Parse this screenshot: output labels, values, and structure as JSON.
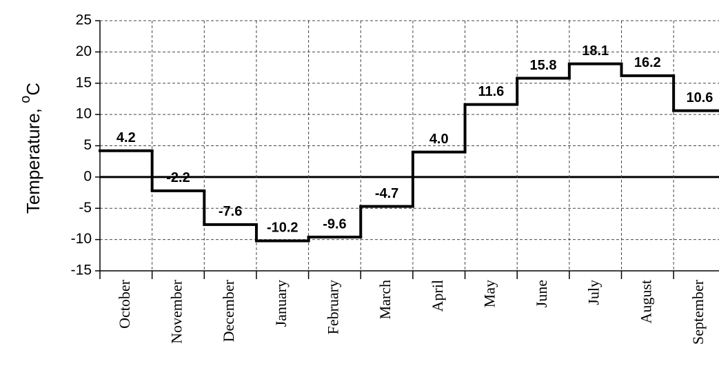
{
  "chart_data": {
    "type": "step",
    "ylabel": {
      "text": "Temperature, ",
      "sup": "o",
      "unit": "C"
    },
    "categories": [
      "October",
      "November",
      "December",
      "January",
      "February",
      "March",
      "April",
      "May",
      "June",
      "July",
      "August",
      "September"
    ],
    "values": [
      4.2,
      -2.2,
      -7.6,
      -10.2,
      -9.6,
      -4.7,
      4.0,
      11.6,
      15.8,
      18.1,
      16.2,
      10.6
    ],
    "value_labels": [
      "4.2",
      "-2.2",
      "-7.6",
      "-10.2",
      "-9.6",
      "-4.7",
      "4.0",
      "11.6",
      "15.8",
      "18.1",
      "16.2",
      "10.6"
    ],
    "color": "#000000",
    "ylim": [
      -15,
      25
    ],
    "yticks": [
      -15,
      -10,
      -5,
      0,
      5,
      10,
      15,
      20,
      25
    ],
    "grid": true
  }
}
